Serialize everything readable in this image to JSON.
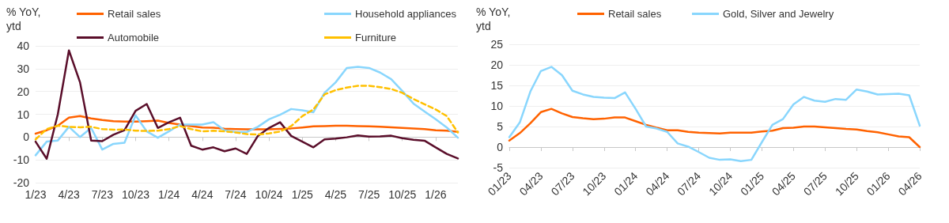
{
  "chart_data": [
    {
      "type": "line",
      "ylabel": "% YoY,\nytd",
      "categories": [
        "1/23",
        null,
        null,
        "4/23",
        null,
        null,
        "7/23",
        null,
        null,
        "10/23",
        null,
        null,
        "1/24",
        null,
        null,
        "4/24",
        null,
        null,
        "7/24",
        null,
        null,
        "10/24",
        null,
        null,
        "1/25",
        null,
        null,
        "4/25",
        null,
        null,
        "7/25",
        null,
        null,
        "10/25",
        null,
        null,
        "1/26",
        null,
        null
      ],
      "series": [
        {
          "name": "Retail sales",
          "color": "#ff6200",
          "line_style": "solid",
          "values": [
            1.5,
            3,
            5,
            8.5,
            9.2,
            8.2,
            7.5,
            7.0,
            6.8,
            6.8,
            7.0,
            7.2,
            6.2,
            5.5,
            4.8,
            4.2,
            4.1,
            3.7,
            3.5,
            3.4,
            3.4,
            3.4,
            3.6,
            3.8,
            4.2,
            4.7,
            4.8,
            5,
            5,
            4.8,
            4.7,
            4.5,
            4.3,
            4.0,
            3.8,
            3.5,
            3.0,
            2.8,
            2.3
          ]
        },
        {
          "name": "Household appliances",
          "color": "#89d6fd",
          "line_style": "solid",
          "values": [
            -8,
            -2,
            -1.5,
            4.5,
            0,
            4,
            -5.5,
            -3,
            -2.5,
            9.5,
            2.5,
            -0.3,
            2.5,
            5.5,
            5.5,
            5.5,
            6.5,
            3,
            2.2,
            2.2,
            4.5,
            7.8,
            9.8,
            12.3,
            11.7,
            10.9,
            19.4,
            24,
            30.3,
            30.8,
            30.3,
            28.3,
            25.4,
            20.2,
            14.7,
            11.2,
            7.8,
            4.2,
            -0.3
          ]
        },
        {
          "name": "Automobile",
          "color": "#5a0e2a",
          "line_style": "solid",
          "values": [
            -2,
            -9.5,
            10,
            38,
            24,
            -1.5,
            -1.8,
            1,
            3,
            11.5,
            14.5,
            4,
            6.5,
            8.5,
            -3.8,
            -5.5,
            -4.5,
            -6.2,
            -5,
            -7.4,
            0.5,
            4,
            6.5,
            0.5,
            -2,
            -4.5,
            -1,
            -0.7,
            -0.1,
            0.7,
            0.2,
            0.3,
            0.6,
            -0.5,
            -1.2,
            -1.6,
            -4.5,
            -7.4,
            -9.4
          ]
        },
        {
          "name": "Furniture",
          "color": "#ffc000",
          "line_style": "dashed",
          "values": [
            -1,
            3.5,
            5,
            4.5,
            4.3,
            4.5,
            3.5,
            3.2,
            3.3,
            2.8,
            2.7,
            2.8,
            3.5,
            4.8,
            3.5,
            2.5,
            2.8,
            2.5,
            2,
            1.3,
            1.1,
            1.6,
            2.4,
            4.8,
            9.2,
            12.1,
            18.7,
            20.6,
            21.7,
            22.5,
            22.5,
            21.9,
            21.1,
            19.4,
            16.7,
            14.4,
            12.1,
            9.2,
            2
          ]
        }
      ],
      "ylim": [
        -20,
        40
      ],
      "yticks": [
        -20,
        -10,
        0,
        10,
        20,
        30,
        40
      ],
      "grid": "y",
      "legend": "top",
      "marker": "none"
    },
    {
      "type": "line",
      "ylabel": "% YoY,\nytd",
      "categories": [
        "01/23",
        null,
        null,
        "04/23",
        null,
        null,
        "07/23",
        null,
        null,
        "10/23",
        null,
        null,
        "01/24",
        null,
        null,
        "04/24",
        null,
        null,
        "07/24",
        null,
        null,
        "10/24",
        null,
        null,
        "01/25",
        null,
        null,
        "04/25",
        null,
        null,
        "07/25",
        null,
        null,
        "10/25",
        null,
        null,
        "01/26",
        null,
        null,
        "04/26"
      ],
      "series": [
        {
          "name": "Retail sales",
          "color": "#ff6200",
          "line_style": "solid",
          "values": [
            1.6,
            3.4,
            5.8,
            8.5,
            9.3,
            8.2,
            7.3,
            7.0,
            6.8,
            6.9,
            7.2,
            7.2,
            6.3,
            5.4,
            4.7,
            4.1,
            4.1,
            3.7,
            3.5,
            3.4,
            3.3,
            3.5,
            3.5,
            3.5,
            3.8,
            4.0,
            4.6,
            4.7,
            5.0,
            5.0,
            4.8,
            4.6,
            4.4,
            4.3,
            3.9,
            3.6,
            3.1,
            2.6,
            2.4,
            0
          ]
        },
        {
          "name": "Gold, Silver and Jewelry",
          "color": "#89d6fd",
          "line_style": "solid",
          "values": [
            2.4,
            6,
            13.5,
            18.5,
            19.5,
            17.5,
            13.7,
            12.8,
            12.2,
            12.0,
            11.9,
            13.3,
            9.3,
            5,
            4.5,
            3.7,
            0.9,
            0.1,
            -1.2,
            -2.6,
            -3.1,
            -3,
            -3.4,
            -3.1,
            1.2,
            5.4,
            6.8,
            10.4,
            12.2,
            11.3,
            11,
            11.7,
            11.5,
            14,
            13.5,
            12.8,
            12.9,
            13,
            12.6,
            5.2
          ]
        }
      ],
      "ylim": [
        -5,
        25
      ],
      "yticks": [
        -5,
        0,
        5,
        10,
        15,
        20,
        25
      ],
      "grid": "y",
      "legend": "top",
      "marker": "none"
    }
  ]
}
